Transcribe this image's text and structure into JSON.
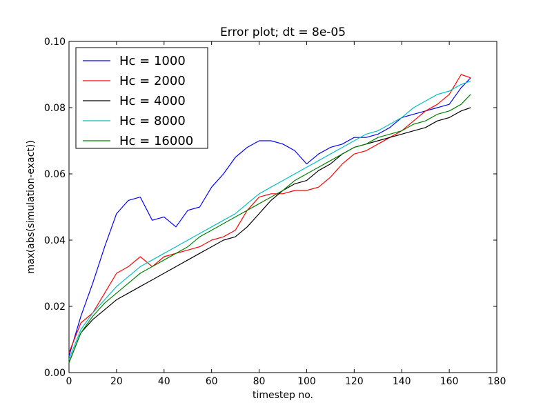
{
  "chart_data": {
    "type": "line",
    "title": "Error plot; dt = 8e-05",
    "xlabel": "timestep no.",
    "ylabel": "max(abs(simulation-exact))",
    "xlim": [
      0,
      180
    ],
    "ylim": [
      0,
      0.1
    ],
    "xticks": [
      "0",
      "20",
      "40",
      "60",
      "80",
      "100",
      "120",
      "140",
      "160",
      "180"
    ],
    "yticks": [
      "0.00",
      "0.02",
      "0.04",
      "0.06",
      "0.08",
      "0.10"
    ],
    "grid": false,
    "legend_position": "top-left",
    "x": [
      0,
      5,
      10,
      15,
      20,
      25,
      30,
      35,
      40,
      45,
      50,
      55,
      60,
      65,
      70,
      75,
      80,
      85,
      90,
      95,
      100,
      105,
      110,
      115,
      120,
      125,
      130,
      135,
      140,
      145,
      150,
      155,
      160,
      165,
      169
    ],
    "series": [
      {
        "name": "Hc = 1000",
        "color": "#0000ff",
        "values": [
          0.005,
          0.017,
          0.027,
          0.038,
          0.048,
          0.052,
          0.053,
          0.046,
          0.047,
          0.044,
          0.049,
          0.05,
          0.056,
          0.06,
          0.065,
          0.068,
          0.07,
          0.07,
          0.069,
          0.067,
          0.063,
          0.066,
          0.068,
          0.069,
          0.071,
          0.071,
          0.072,
          0.074,
          0.077,
          0.078,
          0.079,
          0.08,
          0.081,
          0.086,
          0.089
        ]
      },
      {
        "name": "Hc = 2000",
        "color": "#ff0000",
        "values": [
          0.006,
          0.015,
          0.018,
          0.024,
          0.03,
          0.032,
          0.035,
          0.032,
          0.035,
          0.036,
          0.037,
          0.038,
          0.04,
          0.041,
          0.043,
          0.049,
          0.053,
          0.054,
          0.054,
          0.055,
          0.055,
          0.056,
          0.059,
          0.063,
          0.066,
          0.067,
          0.069,
          0.071,
          0.073,
          0.076,
          0.079,
          0.081,
          0.084,
          0.09,
          0.089
        ]
      },
      {
        "name": "Hc = 4000",
        "color": "#000000",
        "values": [
          0.003,
          0.012,
          0.016,
          0.019,
          0.022,
          0.024,
          0.026,
          0.028,
          0.03,
          0.032,
          0.034,
          0.036,
          0.038,
          0.04,
          0.041,
          0.044,
          0.048,
          0.052,
          0.055,
          0.057,
          0.058,
          0.061,
          0.063,
          0.066,
          0.068,
          0.069,
          0.07,
          0.071,
          0.072,
          0.073,
          0.074,
          0.076,
          0.077,
          0.079,
          0.08
        ]
      },
      {
        "name": "Hc = 8000",
        "color": "#00bfbf",
        "values": [
          0.004,
          0.013,
          0.018,
          0.022,
          0.026,
          0.029,
          0.032,
          0.034,
          0.036,
          0.038,
          0.04,
          0.042,
          0.044,
          0.046,
          0.048,
          0.051,
          0.054,
          0.056,
          0.058,
          0.06,
          0.062,
          0.064,
          0.066,
          0.068,
          0.07,
          0.072,
          0.073,
          0.075,
          0.077,
          0.08,
          0.082,
          0.084,
          0.085,
          0.087,
          0.088
        ]
      },
      {
        "name": "Hc = 16000",
        "color": "#008000",
        "values": [
          0.003,
          0.012,
          0.017,
          0.021,
          0.024,
          0.027,
          0.03,
          0.032,
          0.034,
          0.036,
          0.038,
          0.041,
          0.043,
          0.045,
          0.047,
          0.049,
          0.051,
          0.053,
          0.055,
          0.058,
          0.06,
          0.062,
          0.064,
          0.066,
          0.068,
          0.069,
          0.071,
          0.072,
          0.073,
          0.075,
          0.076,
          0.078,
          0.079,
          0.081,
          0.084
        ]
      }
    ]
  }
}
